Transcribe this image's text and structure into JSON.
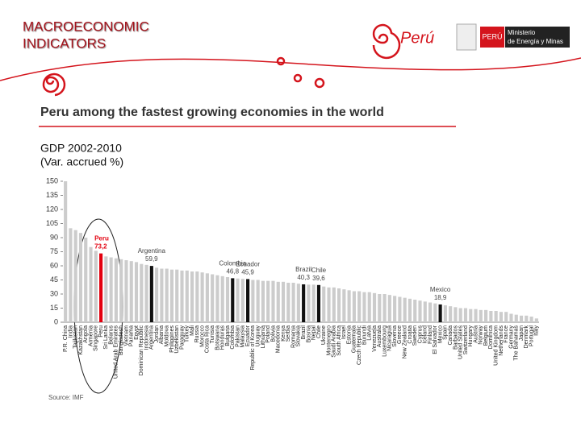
{
  "header": [
    "MACROECONOMIC",
    "INDICATORS"
  ],
  "logo": {
    "brand": "Perú",
    "badge": "PERÚ",
    "ministry": [
      "Ministerio",
      "de Energía y Minas"
    ]
  },
  "chart_data": {
    "type": "bar",
    "title": "Peru among the fastest growing economies in the world",
    "subtitle": [
      "GDP 2002-2010",
      "(Var. accrued %)"
    ],
    "source": "Source: IMF",
    "categories": [
      "P.R. China",
      "India",
      "Tajikistan",
      "Kazakhstan",
      "Angola",
      "Armenia",
      "Singapore",
      "Peru",
      "Sri Lanka",
      "Belarus",
      "United Arab Emirates",
      "Bangladesh",
      "Vietnam",
      "Panama",
      "Egypt",
      "Dominican Republic",
      "Indonesia",
      "Argentina",
      "Jordan",
      "Albania",
      "Moldova",
      "Philippines",
      "Uzbekistan",
      "Paraguay",
      "Turkey",
      "Mali",
      "Russia",
      "Morocco",
      "Costa Rica",
      "Tunisia",
      "Botswana",
      "Honduras",
      "Bulgaria",
      "Colombia",
      "Pakistan",
      "Malaysia",
      "Ecuador",
      "Republic of Korea",
      "Uruguay",
      "Lithuania",
      "Poland",
      "Bolivia",
      "Macedonia",
      "Kenya",
      "Serbia",
      "Romania",
      "Slovakia",
      "Brazil",
      "Bosnia",
      "Nepal",
      "Chile",
      "Ukraine",
      "Montenegro",
      "Saudi Arabia",
      "South Africa",
      "Israel",
      "Estonia",
      "Guatemala",
      "Czech Republic",
      "Burundi",
      "Latvia",
      "Venezuela",
      "Australia",
      "Luxembourg",
      "Nicaragua",
      "Slovenia",
      "Greece",
      "New Zealand",
      "Croatia",
      "Sweden",
      "Cyprus",
      "Iceland",
      "Finland",
      "El Salvador",
      "Mexico",
      "Spain",
      "Canada",
      "Barbados",
      "United States",
      "Switzerland",
      "Hungary",
      "Austria",
      "Norway",
      "Belgium",
      "Dominica",
      "United Kingdom",
      "Netherlands",
      "France",
      "Germany",
      "The Bahamas",
      "Japan",
      "Denmark",
      "Portugal",
      "Italy"
    ],
    "values": [
      150,
      100,
      98,
      95,
      90,
      80,
      76,
      73.2,
      70,
      69,
      68,
      67,
      66,
      65,
      64,
      62,
      61,
      59.9,
      58,
      57,
      57,
      56,
      56,
      55,
      55,
      54,
      54,
      53,
      52,
      51,
      50,
      49,
      48,
      46.8,
      46.5,
      46.2,
      45.9,
      45,
      45,
      44,
      44,
      44,
      43,
      43,
      42,
      42,
      41,
      40.3,
      40,
      40,
      39.6,
      38,
      37,
      37,
      36,
      35,
      34,
      33,
      33,
      32,
      32,
      31,
      30,
      30,
      29,
      28,
      27,
      26,
      25,
      24,
      23,
      22,
      21,
      20,
      18.9,
      18,
      17,
      16,
      15,
      15,
      14,
      14,
      13,
      13,
      12,
      12,
      11,
      11,
      9,
      8,
      7,
      7,
      6,
      4
    ],
    "value_labels": [
      null,
      null,
      null,
      null,
      null,
      null,
      null,
      "73,2",
      null,
      null,
      null,
      null,
      null,
      null,
      null,
      null,
      null,
      "59,9",
      null,
      null,
      null,
      null,
      null,
      null,
      null,
      null,
      null,
      null,
      null,
      null,
      null,
      null,
      null,
      "46,8",
      null,
      null,
      "45,9",
      null,
      null,
      null,
      null,
      null,
      null,
      null,
      null,
      null,
      null,
      "40,3",
      null,
      null,
      "39,6",
      null,
      null,
      null,
      null,
      null,
      null,
      null,
      null,
      null,
      null,
      null,
      null,
      null,
      null,
      null,
      null,
      null,
      null,
      null,
      null,
      null,
      null,
      null,
      "18,9",
      null,
      null,
      null,
      null,
      null,
      null,
      null,
      null,
      null,
      null,
      null,
      null,
      null,
      null,
      null,
      null,
      null,
      null,
      null
    ],
    "color": "#cccccc",
    "highlight_colors": {
      "7": "#e3000f",
      "17": "#111111",
      "33": "#111111",
      "36": "#111111",
      "47": "#111111",
      "50": "#111111",
      "74": "#111111"
    },
    "ylim": [
      0,
      150
    ],
    "yticks": [
      0,
      15,
      30,
      45,
      60,
      75,
      90,
      105,
      120,
      135,
      150
    ]
  }
}
